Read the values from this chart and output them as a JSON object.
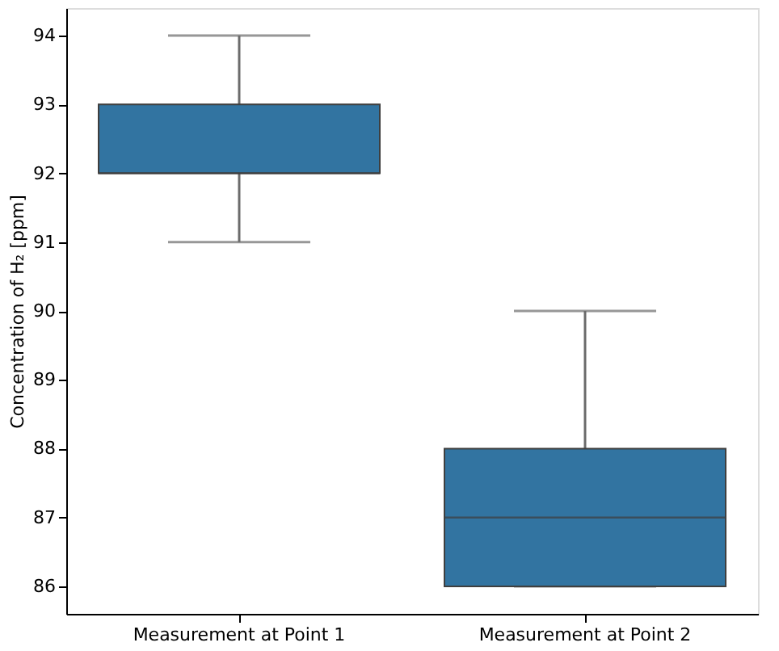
{
  "chart_data": {
    "type": "box",
    "ylabel": "Concentration of H₂ [ppm]",
    "categories": [
      "Measurement at Point 1",
      "Measurement at Point 2"
    ],
    "color": "#3274a1",
    "boxes": [
      {
        "low": 91,
        "q1": 92,
        "median": 92,
        "q3": 93,
        "high": 94
      },
      {
        "low": 86,
        "q1": 86,
        "median": 87,
        "q3": 88,
        "high": 90
      }
    ],
    "ylim": [
      85.6,
      94.4
    ],
    "yticks": [
      86,
      87,
      88,
      89,
      90,
      91,
      92,
      93,
      94
    ],
    "grid": false
  }
}
